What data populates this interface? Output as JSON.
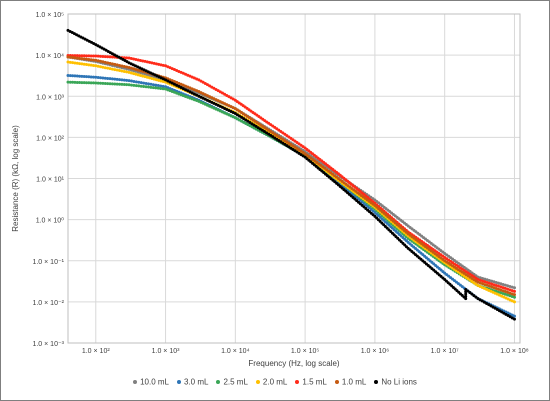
{
  "chart_data": {
    "type": "scatter",
    "title": "",
    "xlabel": "Frequency (Hz, log scale)",
    "ylabel": "Resistance (R) (kΩ, log scale)",
    "x_scale": "log",
    "y_scale": "log",
    "xlim": [
      40,
      120000000
    ],
    "ylim": [
      0.001,
      100000
    ],
    "x_ticks": [
      {
        "value": 100,
        "label": "1.0 × 10²"
      },
      {
        "value": 1000,
        "label": "1.0 × 10³"
      },
      {
        "value": 10000,
        "label": "1.0 × 10⁴"
      },
      {
        "value": 100000,
        "label": "1.0 × 10⁵"
      },
      {
        "value": 1000000,
        "label": "1.0 × 10⁶"
      },
      {
        "value": 10000000,
        "label": "1.0 × 10⁷"
      },
      {
        "value": 100000000,
        "label": "1.0 × 10⁸"
      }
    ],
    "y_ticks": [
      {
        "value": 100000,
        "label": "1.0 × 10⁵"
      },
      {
        "value": 10000,
        "label": "1.0 × 10⁴"
      },
      {
        "value": 1000,
        "label": "1.0 × 10³"
      },
      {
        "value": 100,
        "label": "1.0 × 10²"
      },
      {
        "value": 10,
        "label": "1.0 × 10¹"
      },
      {
        "value": 1,
        "label": "1.0 × 10⁰"
      },
      {
        "value": 0.1,
        "label": "1.0 × 10⁻¹"
      },
      {
        "value": 0.01,
        "label": "1.0 × 10⁻²"
      },
      {
        "value": 0.001,
        "label": "1.0 × 10⁻³"
      }
    ],
    "grid": true,
    "legend_position": "bottom",
    "series": [
      {
        "name": "10.0 mL",
        "color": "#808080",
        "points": [
          [
            40,
            9000
          ],
          [
            100,
            7000
          ],
          [
            300,
            4500
          ],
          [
            1000,
            2500
          ],
          [
            3000,
            1200
          ],
          [
            10000,
            500
          ],
          [
            30000,
            160
          ],
          [
            100000,
            45
          ],
          [
            300000,
            12
          ],
          [
            1000000,
            3
          ],
          [
            3000000,
            0.7
          ],
          [
            10000000,
            0.15
          ],
          [
            30000000,
            0.04
          ],
          [
            100000000,
            0.022
          ]
        ]
      },
      {
        "name": "3.0 mL",
        "color": "#2e75b6",
        "points": [
          [
            40,
            3200
          ],
          [
            100,
            2900
          ],
          [
            300,
            2400
          ],
          [
            1000,
            1700
          ],
          [
            3000,
            800
          ],
          [
            10000,
            300
          ],
          [
            30000,
            110
          ],
          [
            100000,
            35
          ],
          [
            300000,
            8
          ],
          [
            1000000,
            1.5
          ],
          [
            3000000,
            0.28
          ],
          [
            10000000,
            0.05
          ],
          [
            30000000,
            0.012
          ],
          [
            100000000,
            0.0045
          ]
        ]
      },
      {
        "name": "2.5 mL",
        "color": "#3aa657",
        "points": [
          [
            40,
            2200
          ],
          [
            100,
            2100
          ],
          [
            300,
            1900
          ],
          [
            1000,
            1500
          ],
          [
            3000,
            750
          ],
          [
            10000,
            300
          ],
          [
            30000,
            110
          ],
          [
            100000,
            35
          ],
          [
            300000,
            9
          ],
          [
            1000000,
            1.8
          ],
          [
            3000000,
            0.35
          ],
          [
            10000000,
            0.08
          ],
          [
            30000000,
            0.025
          ],
          [
            100000000,
            0.013
          ]
        ]
      },
      {
        "name": "2.0 mL",
        "color": "#ffc000",
        "points": [
          [
            40,
            6800
          ],
          [
            100,
            5500
          ],
          [
            300,
            3800
          ],
          [
            1000,
            2200
          ],
          [
            3000,
            1000
          ],
          [
            10000,
            400
          ],
          [
            30000,
            130
          ],
          [
            100000,
            38
          ],
          [
            300000,
            9
          ],
          [
            1000000,
            2
          ],
          [
            3000000,
            0.4
          ],
          [
            10000000,
            0.09
          ],
          [
            30000000,
            0.025
          ],
          [
            100000000,
            0.01
          ]
        ]
      },
      {
        "name": "1.5 mL",
        "color": "#ff2b1a",
        "points": [
          [
            40,
            9800
          ],
          [
            100,
            9500
          ],
          [
            300,
            8500
          ],
          [
            1000,
            5500
          ],
          [
            3000,
            2500
          ],
          [
            10000,
            800
          ],
          [
            30000,
            220
          ],
          [
            100000,
            55
          ],
          [
            300000,
            13
          ],
          [
            1000000,
            2.5
          ],
          [
            3000000,
            0.5
          ],
          [
            10000000,
            0.12
          ],
          [
            30000000,
            0.035
          ],
          [
            100000000,
            0.018
          ]
        ]
      },
      {
        "name": "1.0 mL",
        "color": "#c55a11",
        "points": [
          [
            40,
            9000
          ],
          [
            100,
            7500
          ],
          [
            300,
            5000
          ],
          [
            1000,
            2800
          ],
          [
            3000,
            1300
          ],
          [
            10000,
            500
          ],
          [
            30000,
            150
          ],
          [
            100000,
            40
          ],
          [
            300000,
            10
          ],
          [
            1000000,
            2.2
          ],
          [
            3000000,
            0.45
          ],
          [
            10000000,
            0.1
          ],
          [
            30000000,
            0.03
          ],
          [
            100000000,
            0.015
          ]
        ]
      },
      {
        "name": "No Li ions",
        "color": "#000000",
        "points": [
          [
            40,
            40000
          ],
          [
            100,
            18000
          ],
          [
            300,
            6500
          ],
          [
            1000,
            2500
          ],
          [
            3000,
            1000
          ],
          [
            10000,
            380
          ],
          [
            30000,
            120
          ],
          [
            100000,
            33
          ],
          [
            300000,
            7
          ],
          [
            1000000,
            1.2
          ],
          [
            3000000,
            0.2
          ],
          [
            10000000,
            0.035
          ],
          [
            20000000,
            0.012
          ],
          [
            20000000,
            0.02
          ],
          [
            30000000,
            0.012
          ],
          [
            100000000,
            0.0038
          ]
        ]
      }
    ]
  }
}
